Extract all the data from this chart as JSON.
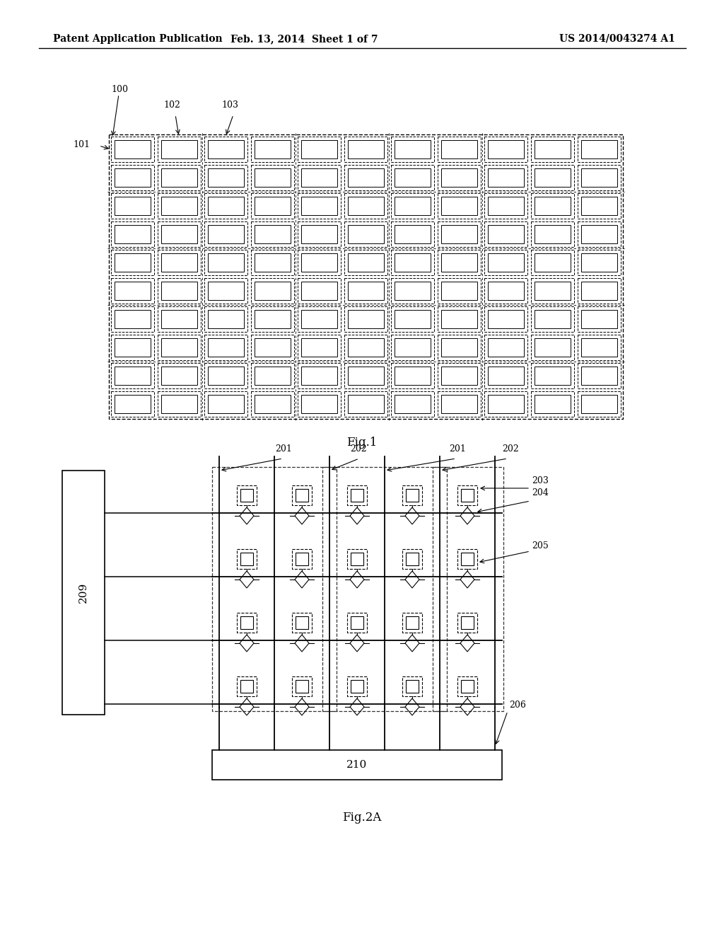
{
  "header_left": "Patent Application Publication",
  "header_mid": "Feb. 13, 2014  Sheet 1 of 7",
  "header_right": "US 2014/0043274 A1",
  "fig1_label": "Fig.1",
  "fig2_label": "Fig.2A",
  "fig1_ref_100": "100",
  "fig1_ref_101": "101",
  "fig1_ref_102": "102",
  "fig1_ref_103": "103",
  "fig1_rows": 10,
  "fig1_cols": 11,
  "fig2_ref_201a": "201",
  "fig2_ref_202a": "202",
  "fig2_ref_201b": "201",
  "fig2_ref_202b": "202",
  "fig2_ref_203": "203",
  "fig2_ref_204": "204",
  "fig2_ref_205": "205",
  "fig2_ref_206": "206",
  "fig2_ref_209": "209",
  "fig2_ref_210": "210",
  "bg_color": "#ffffff",
  "line_color": "#000000"
}
